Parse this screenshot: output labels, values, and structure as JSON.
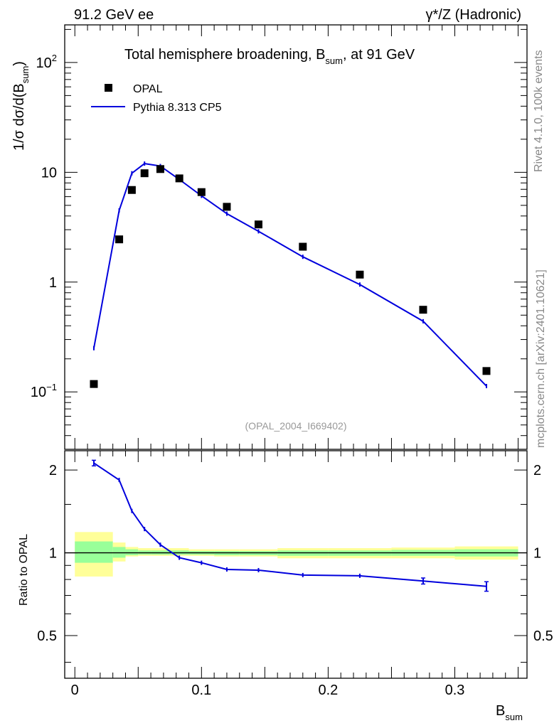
{
  "header": {
    "left": "91.2 GeV ee",
    "right": "γ*/Z (Hadronic)"
  },
  "side": {
    "rivet": "Rivet 4.1.0,  100k events",
    "mcplots": "mcplots.cern.ch [arXiv:2401.10621]"
  },
  "chart_data": {
    "type": "scatter",
    "title": "Total hemisphere broadening, B",
    "title_sub": "sum",
    "title_tail": ", at 91 GeV",
    "analysis_id": "(OPAL_2004_I669402)",
    "xlabel": "B",
    "xlabel_sub": "sum",
    "ylabel_main": "1/σ  dσ/d(B",
    "ylabel_sub": "sum",
    "ylabel_tail": ")",
    "ratio_ylabel": "Ratio to OPAL",
    "xlim": [
      -0.008,
      0.357
    ],
    "ylim_log": [
      0.03,
      220
    ],
    "ratio_ylim": [
      0.35,
      2.35
    ],
    "x_ticks": [
      {
        "v": 0,
        "label": "0"
      },
      {
        "v": 0.1,
        "label": "0.1"
      },
      {
        "v": 0.2,
        "label": "0.2"
      },
      {
        "v": 0.3,
        "label": "0.3"
      }
    ],
    "y_ticks": [
      {
        "v": 0.1,
        "base": "10",
        "exp": "−1"
      },
      {
        "v": 1,
        "base": "1",
        "exp": ""
      },
      {
        "v": 10,
        "base": "10",
        "exp": ""
      },
      {
        "v": 100,
        "base": "10",
        "exp": "2"
      }
    ],
    "ratio_ticks": [
      {
        "v": 0.5,
        "label": "0.5"
      },
      {
        "v": 1,
        "label": "1"
      },
      {
        "v": 2,
        "label": "2"
      }
    ],
    "legend": [
      {
        "name": "OPAL",
        "style": "square"
      },
      {
        "name": "Pythia 8.313 CP5",
        "style": "line"
      }
    ],
    "colors": {
      "data": "#000000",
      "mc": "#0000dd",
      "band_inner": "#99ff99",
      "band_outer": "#ffff99"
    },
    "series": [
      {
        "name": "OPAL",
        "x": [
          0.015,
          0.035,
          0.045,
          0.055,
          0.0675,
          0.0825,
          0.1,
          0.12,
          0.145,
          0.18,
          0.225,
          0.275,
          0.325
        ],
        "values": [
          0.118,
          2.45,
          6.9,
          9.8,
          10.7,
          8.8,
          6.6,
          4.85,
          3.35,
          2.1,
          1.17,
          0.56,
          0.155
        ]
      },
      {
        "name": "Pythia 8.313 CP5",
        "x": [
          0.015,
          0.035,
          0.045,
          0.055,
          0.0675,
          0.0825,
          0.1,
          0.12,
          0.145,
          0.18,
          0.225,
          0.275,
          0.325
        ],
        "values": [
          0.25,
          4.5,
          9.8,
          12.0,
          11.4,
          8.6,
          6.1,
          4.2,
          2.9,
          1.7,
          0.95,
          0.44,
          0.113
        ]
      }
    ],
    "ratio": {
      "x": [
        0.015,
        0.035,
        0.045,
        0.055,
        0.0675,
        0.0825,
        0.1,
        0.12,
        0.145,
        0.18,
        0.225,
        0.275,
        0.325
      ],
      "values": [
        2.12,
        1.84,
        1.42,
        1.22,
        1.07,
        0.96,
        0.92,
        0.87,
        0.865,
        0.83,
        0.825,
        0.79,
        0.755
      ],
      "errors": [
        0.05,
        0.015,
        0.015,
        0.012,
        0.01,
        0.008,
        0.008,
        0.008,
        0.008,
        0.01,
        0.012,
        0.02,
        0.03
      ]
    },
    "bands": [
      {
        "x0": 0.0,
        "x1": 0.03,
        "inner": [
          0.92,
          1.1
        ],
        "outer": [
          0.82,
          1.19
        ]
      },
      {
        "x0": 0.03,
        "x1": 0.04,
        "inner": [
          0.96,
          1.05
        ],
        "outer": [
          0.93,
          1.09
        ]
      },
      {
        "x0": 0.04,
        "x1": 0.05,
        "inner": [
          0.98,
          1.03
        ],
        "outer": [
          0.97,
          1.05
        ]
      },
      {
        "x0": 0.05,
        "x1": 0.06,
        "inner": [
          0.985,
          1.02
        ],
        "outer": [
          0.975,
          1.04
        ]
      },
      {
        "x0": 0.06,
        "x1": 0.075,
        "inner": [
          0.985,
          1.02
        ],
        "outer": [
          0.975,
          1.04
        ]
      },
      {
        "x0": 0.075,
        "x1": 0.09,
        "inner": [
          0.985,
          1.02
        ],
        "outer": [
          0.975,
          1.04
        ]
      },
      {
        "x0": 0.09,
        "x1": 0.11,
        "inner": [
          0.985,
          1.015
        ],
        "outer": [
          0.975,
          1.03
        ]
      },
      {
        "x0": 0.11,
        "x1": 0.13,
        "inner": [
          0.98,
          1.015
        ],
        "outer": [
          0.97,
          1.03
        ]
      },
      {
        "x0": 0.13,
        "x1": 0.16,
        "inner": [
          0.98,
          1.015
        ],
        "outer": [
          0.97,
          1.03
        ]
      },
      {
        "x0": 0.16,
        "x1": 0.2,
        "inner": [
          0.975,
          1.02
        ],
        "outer": [
          0.955,
          1.04
        ]
      },
      {
        "x0": 0.2,
        "x1": 0.25,
        "inner": [
          0.975,
          1.02
        ],
        "outer": [
          0.955,
          1.04
        ]
      },
      {
        "x0": 0.25,
        "x1": 0.3,
        "inner": [
          0.975,
          1.025
        ],
        "outer": [
          0.955,
          1.045
        ]
      },
      {
        "x0": 0.3,
        "x1": 0.35,
        "inner": [
          0.97,
          1.03
        ],
        "outer": [
          0.945,
          1.055
        ]
      }
    ]
  }
}
